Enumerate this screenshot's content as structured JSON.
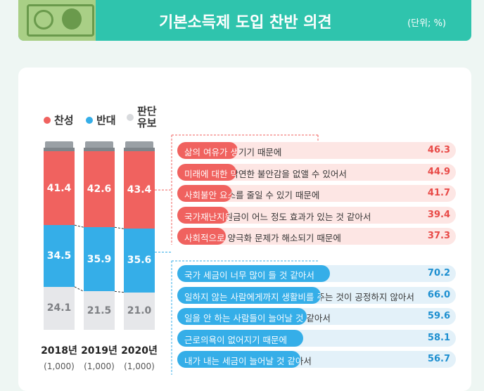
{
  "header": {
    "title": "기본소득제 도입 찬반 의견",
    "unit": "(단위; %)"
  },
  "legend": [
    {
      "label": "찬성",
      "color": "#f0625f"
    },
    {
      "label": "반대",
      "color": "#35aee8"
    },
    {
      "label": "판단\n유보",
      "color": "#d8dadd"
    }
  ],
  "colors": {
    "agree": "#f0625f",
    "disagree": "#35aee8",
    "undecided": "#e6e7ea",
    "agree_track": "#fde6e4",
    "disagree_track": "#e3f1f9"
  },
  "chart_data": [
    {
      "type": "bar",
      "stacked": true,
      "categories": [
        "2018년",
        "2019년",
        "2020년"
      ],
      "sample_sizes": [
        "(1,000)",
        "(1,000)",
        "(1,000)"
      ],
      "series": [
        {
          "name": "찬성",
          "values": [
            41.4,
            42.6,
            43.4
          ]
        },
        {
          "name": "반대",
          "values": [
            34.5,
            35.9,
            35.6
          ]
        },
        {
          "name": "판단유보",
          "values": [
            24.1,
            21.5,
            21.0
          ]
        }
      ],
      "value_labels": [
        [
          "41.4",
          "42.6",
          "43.4"
        ],
        [
          "34.5",
          "35.9",
          "35.6"
        ],
        [
          "24.1",
          "21.5",
          "21.0"
        ]
      ]
    },
    {
      "type": "bar",
      "orientation": "horizontal",
      "group": "찬성",
      "categories": [
        "삶의 여유가 생기기 때문에",
        "미래에 대한 막연한 불안감을 없앨 수 있어서",
        "사회불안 요소를 줄일 수 있기 때문에",
        "국가재난지원금이 어느 정도 효과가 있는 것 같아서",
        "사회적으로 양극화 문제가 해소되기 때문에"
      ],
      "values": [
        46.3,
        44.9,
        41.7,
        39.4,
        37.3
      ],
      "value_labels": [
        "46.3",
        "44.9",
        "41.7",
        "39.4",
        "37.3"
      ]
    },
    {
      "type": "bar",
      "orientation": "horizontal",
      "group": "반대",
      "categories": [
        "국가 세금이 너무 많이 들 것 같아서",
        "일하지 않는 사람에게까지 생활비를 주는 것이 공정하지 않아서",
        "일을 안 하는 사람들이 늘어날 것 같아서",
        "근로의욕이 없어지기 때문에",
        "내가 내는 세금이 늘어날 것 같아서"
      ],
      "values": [
        70.2,
        66.0,
        59.6,
        58.1,
        56.7
      ],
      "value_labels": [
        "70.2",
        "66.0",
        "59.6",
        "58.1",
        "56.7"
      ]
    }
  ]
}
